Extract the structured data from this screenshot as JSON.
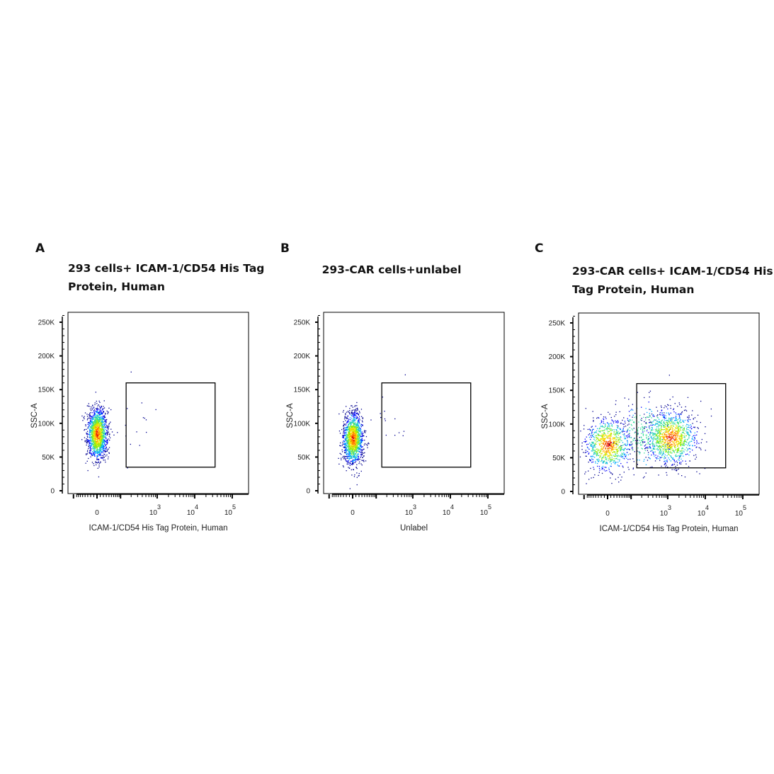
{
  "chart_data": [
    {
      "type": "scatter",
      "panel_label": "A",
      "title_lines": [
        "293 cells+ ICAM-1/CD54 His Tag",
        "Protein, Human"
      ],
      "xlabel": "ICAM-1/CD54 His Tag Protein, Human",
      "ylabel": "SSC-A",
      "x_scale": "biexponential",
      "x_ticks": [
        {
          "value": 0,
          "label": "0",
          "sup": ""
        },
        {
          "value": 1000,
          "label": "10",
          "sup": "3"
        },
        {
          "value": 10000,
          "label": "10",
          "sup": "4"
        },
        {
          "value": 100000,
          "label": "10",
          "sup": "5"
        }
      ],
      "y_ticks": [
        {
          "value": 0,
          "label": "0"
        },
        {
          "value": 50000,
          "label": "50K"
        },
        {
          "value": 100000,
          "label": "100K"
        },
        {
          "value": 150000,
          "label": "150K"
        },
        {
          "value": 200000,
          "label": "200K"
        },
        {
          "value": 250000,
          "label": "250K"
        }
      ],
      "ylim": [
        0,
        262000
      ],
      "gate": {
        "x": [
          145,
          35000
        ],
        "y": [
          35000,
          160000
        ]
      },
      "populations": [
        {
          "center_x": 0,
          "center_ssc": 85000,
          "sd_x_decades": 0.13,
          "sd_ssc": 19000,
          "events": 1500
        },
        {
          "center_x": 250,
          "center_ssc": 105000,
          "sd_x_decades": 0.35,
          "sd_ssc": 22000,
          "events": 18
        }
      ]
    },
    {
      "type": "scatter",
      "panel_label": "B",
      "title_lines": [
        "293-CAR cells+unlabel"
      ],
      "xlabel": "Unlabel",
      "ylabel": "SSC-A",
      "x_scale": "biexponential",
      "x_ticks": [
        {
          "value": 0,
          "label": "0",
          "sup": ""
        },
        {
          "value": 1000,
          "label": "10",
          "sup": "3"
        },
        {
          "value": 10000,
          "label": "10",
          "sup": "4"
        },
        {
          "value": 100000,
          "label": "10",
          "sup": "5"
        }
      ],
      "y_ticks": [
        {
          "value": 0,
          "label": "0"
        },
        {
          "value": 50000,
          "label": "50K"
        },
        {
          "value": 100000,
          "label": "100K"
        },
        {
          "value": 150000,
          "label": "150K"
        },
        {
          "value": 200000,
          "label": "200K"
        },
        {
          "value": 250000,
          "label": "250K"
        }
      ],
      "ylim": [
        0,
        262000
      ],
      "gate": {
        "x": [
          145,
          35000
        ],
        "y": [
          35000,
          160000
        ]
      },
      "populations": [
        {
          "center_x": 0,
          "center_ssc": 78000,
          "sd_x_decades": 0.13,
          "sd_ssc": 19000,
          "events": 1500
        },
        {
          "center_x": 250,
          "center_ssc": 110000,
          "sd_x_decades": 0.3,
          "sd_ssc": 15000,
          "events": 14
        }
      ]
    },
    {
      "type": "scatter",
      "panel_label": "C",
      "title_lines": [
        "293-CAR cells+ ICAM-1/CD54 His",
        "Tag Protein, Human"
      ],
      "xlabel": "ICAM-1/CD54 His Tag Protein, Human",
      "ylabel": "SSC-A",
      "x_scale": "biexponential",
      "x_ticks": [
        {
          "value": 0,
          "label": "0",
          "sup": ""
        },
        {
          "value": 1000,
          "label": "10",
          "sup": "3"
        },
        {
          "value": 10000,
          "label": "10",
          "sup": "4"
        },
        {
          "value": 100000,
          "label": "10",
          "sup": "5"
        }
      ],
      "y_ticks": [
        {
          "value": 0,
          "label": "0"
        },
        {
          "value": 50000,
          "label": "50K"
        },
        {
          "value": 100000,
          "label": "100K"
        },
        {
          "value": 150000,
          "label": "150K"
        },
        {
          "value": 200000,
          "label": "200K"
        },
        {
          "value": 250000,
          "label": "250K"
        }
      ],
      "ylim": [
        0,
        262000
      ],
      "gate": {
        "x": [
          145,
          35000
        ],
        "y": [
          35000,
          160000
        ]
      },
      "populations": [
        {
          "center_x": 0,
          "center_ssc": 70000,
          "sd_x_decades": 0.3,
          "sd_ssc": 20000,
          "events": 900
        },
        {
          "center_x": 1200,
          "center_ssc": 80000,
          "sd_x_decades": 0.35,
          "sd_ssc": 20000,
          "events": 1100
        },
        {
          "center_x": 250,
          "center_ssc": 85000,
          "sd_x_decades": 0.35,
          "sd_ssc": 25000,
          "events": 250
        }
      ]
    }
  ]
}
